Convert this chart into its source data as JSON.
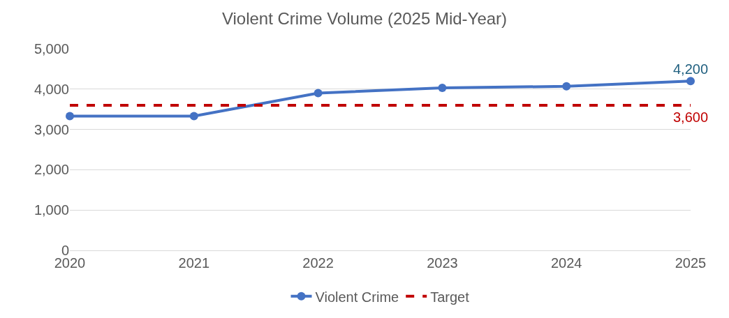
{
  "chart_data": {
    "type": "line",
    "title": "Violent Crime Volume (2025 Mid-Year)",
    "x": [
      2020,
      2021,
      2022,
      2023,
      2024,
      2025
    ],
    "series": [
      {
        "name": "Violent Crime",
        "color": "#4472c4",
        "values": [
          3330,
          3330,
          3900,
          4030,
          4070,
          4200
        ],
        "marker": "circle",
        "line_style": "solid",
        "value_labels": [
          null,
          null,
          null,
          null,
          null,
          "4,200"
        ]
      },
      {
        "name": "Target",
        "color": "#c00000",
        "values": [
          3600,
          3600,
          3600,
          3600,
          3600,
          3600
        ],
        "marker": "none",
        "line_style": "dashed",
        "value_labels": [
          null,
          null,
          null,
          null,
          null,
          "3,600"
        ]
      }
    ],
    "xlim": [
      2020,
      2025
    ],
    "xticks": [
      2020,
      2021,
      2022,
      2023,
      2024,
      2025
    ],
    "ylim": [
      0,
      5000
    ],
    "yticks": [
      {
        "value": 0,
        "label": "0"
      },
      {
        "value": 1000,
        "label": "1,000"
      },
      {
        "value": 2000,
        "label": "2,000"
      },
      {
        "value": 3000,
        "label": "3,000"
      },
      {
        "value": 4000,
        "label": "4,000"
      },
      {
        "value": 5000,
        "label": "5,000"
      }
    ],
    "grid": "y",
    "legend": "bottom"
  }
}
